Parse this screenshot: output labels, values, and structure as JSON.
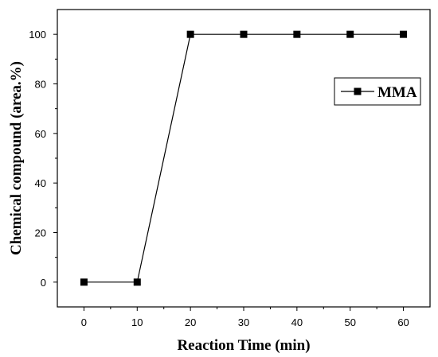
{
  "chart_data": {
    "type": "line",
    "title": "",
    "xlabel": "Reaction Time (min)",
    "ylabel": "Chemical compound (area.%)",
    "xlim": [
      -5,
      65
    ],
    "ylim": [
      -10,
      110
    ],
    "xticks": [
      0,
      10,
      20,
      30,
      40,
      50,
      60
    ],
    "yticks": [
      0,
      20,
      40,
      60,
      80,
      100
    ],
    "grid": false,
    "legend_position": "right",
    "series": [
      {
        "name": "MMA",
        "marker": "square",
        "color": "#000000",
        "x": [
          0,
          10,
          20,
          30,
          40,
          50,
          60
        ],
        "y": [
          0,
          0,
          100,
          100,
          100,
          100,
          100
        ]
      }
    ]
  }
}
